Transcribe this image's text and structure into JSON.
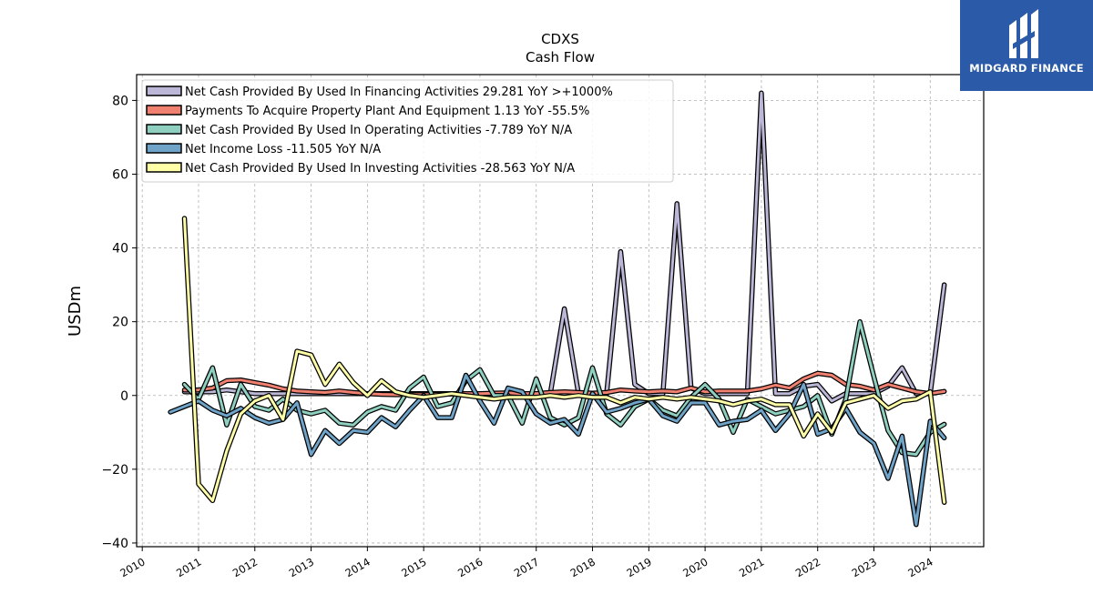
{
  "logo": {
    "text": "MIDGARD FINANCE"
  },
  "chart_data": {
    "type": "line",
    "title": "CDXS",
    "subtitle": "Cash Flow",
    "ylabel": "USDm",
    "xlabel": "",
    "ylim": [
      -41,
      87
    ],
    "xlim": [
      2009.9,
      2024.95
    ],
    "yticks": [
      -40,
      -20,
      0,
      20,
      40,
      60,
      80
    ],
    "xticks": [
      2010,
      2011,
      2012,
      2013,
      2014,
      2015,
      2016,
      2017,
      2018,
      2019,
      2020,
      2021,
      2022,
      2023,
      2024
    ],
    "grid": true,
    "legend_position": "top-left",
    "series": [
      {
        "name": "Net Cash Provided By Used In Financing Activities  29.281 YoY >+1000%",
        "color": "#bcb7d6",
        "x": [
          2010.75,
          2011.0,
          2011.25,
          2011.5,
          2011.75,
          2012.0,
          2012.25,
          2012.5,
          2012.75,
          2013.0,
          2013.25,
          2013.5,
          2013.75,
          2014.0,
          2014.25,
          2014.5,
          2014.75,
          2015.0,
          2015.25,
          2015.5,
          2015.75,
          2016.0,
          2016.25,
          2016.5,
          2016.75,
          2017.0,
          2017.25,
          2017.5,
          2017.75,
          2018.0,
          2018.25,
          2018.5,
          2018.75,
          2019.0,
          2019.25,
          2019.5,
          2019.75,
          2020.0,
          2020.25,
          2020.5,
          2020.75,
          2021.0,
          2021.25,
          2021.5,
          2021.75,
          2022.0,
          2022.25,
          2022.5,
          2022.75,
          2023.0,
          2023.25,
          2023.5,
          2023.75,
          2024.0,
          2024.25
        ],
        "y": [
          1.0,
          1.0,
          1.0,
          1.5,
          1.0,
          0.5,
          0.5,
          0.5,
          0.5,
          0.5,
          0.5,
          0.5,
          0.5,
          0.5,
          0.5,
          0.5,
          0.5,
          0.5,
          0.5,
          0.5,
          0.5,
          0.5,
          0.5,
          0.5,
          0.5,
          0.5,
          0.5,
          23.5,
          0.5,
          0.5,
          0.5,
          39.0,
          3.0,
          0.5,
          0.5,
          52.0,
          2.0,
          0.5,
          0.5,
          0.5,
          0.5,
          82.0,
          0.5,
          0.5,
          2.5,
          3.0,
          -1.5,
          0.5,
          0.5,
          0.5,
          2.5,
          7.5,
          0.5,
          0.5,
          30.0
        ]
      },
      {
        "name": "Payments To Acquire Property Plant And Equipment  1.13 YoY -55.5%",
        "color": "#f08070",
        "x": [
          2010.75,
          2011.0,
          2011.25,
          2011.5,
          2011.75,
          2012.0,
          2012.25,
          2012.5,
          2012.75,
          2013.0,
          2013.25,
          2013.5,
          2013.75,
          2014.0,
          2014.25,
          2014.5,
          2014.75,
          2015.0,
          2015.25,
          2015.5,
          2015.75,
          2016.0,
          2016.25,
          2016.5,
          2016.75,
          2017.0,
          2017.25,
          2017.5,
          2017.75,
          2018.0,
          2018.25,
          2018.5,
          2018.75,
          2019.0,
          2019.25,
          2019.5,
          2019.75,
          2020.0,
          2020.25,
          2020.5,
          2020.75,
          2021.0,
          2021.25,
          2021.5,
          2021.75,
          2022.0,
          2022.25,
          2022.5,
          2022.75,
          2023.0,
          2023.25,
          2023.5,
          2023.75,
          2024.0,
          2024.25
        ],
        "y": [
          1.5,
          1.5,
          2.0,
          4.0,
          4.2,
          3.5,
          2.8,
          1.8,
          1.2,
          1.0,
          0.8,
          1.2,
          0.8,
          0.5,
          0.3,
          0.2,
          0.2,
          0.2,
          0.3,
          0.4,
          0.5,
          0.5,
          0.6,
          0.7,
          0.5,
          0.5,
          0.8,
          1.0,
          0.8,
          0.6,
          0.8,
          1.5,
          1.2,
          1.0,
          1.2,
          1.0,
          2.0,
          1.0,
          1.2,
          1.2,
          1.2,
          1.8,
          2.8,
          2.0,
          4.5,
          6.0,
          5.5,
          3.0,
          2.5,
          1.5,
          3.0,
          2.0,
          1.0,
          0.5,
          1.1
        ]
      },
      {
        "name": "Net Cash Provided By Used In Operating Activities  -7.789 YoY N/A",
        "color": "#8ecfc0",
        "x": [
          2010.75,
          2011.0,
          2011.25,
          2011.5,
          2011.75,
          2012.0,
          2012.25,
          2012.5,
          2012.75,
          2013.0,
          2013.25,
          2013.5,
          2013.75,
          2014.0,
          2014.25,
          2014.5,
          2014.75,
          2015.0,
          2015.25,
          2015.5,
          2015.75,
          2016.0,
          2016.25,
          2016.5,
          2016.75,
          2017.0,
          2017.25,
          2017.5,
          2017.75,
          2018.0,
          2018.25,
          2018.5,
          2018.75,
          2019.0,
          2019.25,
          2019.5,
          2019.75,
          2020.0,
          2020.25,
          2020.5,
          2020.75,
          2021.0,
          2021.25,
          2021.5,
          2021.75,
          2022.0,
          2022.25,
          2022.5,
          2022.75,
          2023.0,
          2023.25,
          2023.5,
          2023.75,
          2024.0,
          2024.25
        ],
        "y": [
          3.0,
          -1.0,
          7.5,
          -8.0,
          3.0,
          -3.0,
          -4.0,
          -1.0,
          -4.0,
          -5.0,
          -4.0,
          -7.5,
          -8.0,
          -4.5,
          -3.0,
          -4.0,
          2.0,
          5.0,
          -3.0,
          -2.0,
          4.0,
          7.0,
          0.0,
          0.0,
          -7.5,
          4.5,
          -6.0,
          -8.0,
          -6.0,
          7.5,
          -5.0,
          -8.0,
          -3.0,
          -1.0,
          -4.0,
          -5.5,
          -0.5,
          3.0,
          -1.0,
          -10.0,
          -1.0,
          -3.0,
          -5.0,
          -4.0,
          -3.0,
          0.0,
          -10.5,
          -1.0,
          20.0,
          5.0,
          -9.5,
          -15.5,
          -16.0,
          -10.0,
          -7.8
        ]
      },
      {
        "name": "Net Income Loss  -11.505 YoY N/A",
        "color": "#6fa3c8",
        "x": [
          2010.5,
          2010.75,
          2011.0,
          2011.25,
          2011.5,
          2011.75,
          2012.0,
          2012.25,
          2012.5,
          2012.75,
          2013.0,
          2013.25,
          2013.5,
          2013.75,
          2014.0,
          2014.25,
          2014.5,
          2014.75,
          2015.0,
          2015.25,
          2015.5,
          2015.75,
          2016.0,
          2016.25,
          2016.5,
          2016.75,
          2017.0,
          2017.25,
          2017.5,
          2017.75,
          2018.0,
          2018.25,
          2018.5,
          2018.75,
          2019.0,
          2019.25,
          2019.5,
          2019.75,
          2020.0,
          2020.25,
          2020.5,
          2020.75,
          2021.0,
          2021.25,
          2021.5,
          2021.75,
          2022.0,
          2022.25,
          2022.5,
          2022.75,
          2023.0,
          2023.25,
          2023.5,
          2023.75,
          2024.0,
          2024.25
        ],
        "y": [
          -4.5,
          -3.0,
          -1.5,
          -4.0,
          -5.5,
          -3.5,
          -6.0,
          -7.5,
          -6.5,
          -2.0,
          -16.0,
          -9.5,
          -13.0,
          -9.5,
          -10.0,
          -6.0,
          -8.5,
          -4.0,
          0.0,
          -6.0,
          -6.0,
          5.5,
          -1.5,
          -7.5,
          2.0,
          1.0,
          -5.0,
          -7.5,
          -6.5,
          -10.5,
          0.5,
          -4.5,
          -3.5,
          -2.0,
          -1.0,
          -5.5,
          -7.0,
          -2.0,
          -2.0,
          -8.0,
          -7.0,
          -6.5,
          -4.0,
          -9.5,
          -5.0,
          3.0,
          -10.5,
          -9.0,
          -3.5,
          -10.0,
          -13.0,
          -22.5,
          -11.0,
          -35.0,
          -7.0,
          -11.5
        ]
      },
      {
        "name": "Net Cash Provided By Used In Investing Activities  -28.563 YoY N/A",
        "color": "#ffffa8",
        "x": [
          2010.75,
          2011.0,
          2011.25,
          2011.5,
          2011.75,
          2012.0,
          2012.25,
          2012.5,
          2012.75,
          2013.0,
          2013.25,
          2013.5,
          2013.75,
          2014.0,
          2014.25,
          2014.5,
          2014.75,
          2015.0,
          2015.25,
          2015.5,
          2015.75,
          2016.0,
          2016.25,
          2016.5,
          2016.75,
          2017.0,
          2017.25,
          2017.5,
          2017.75,
          2018.0,
          2018.25,
          2018.5,
          2018.75,
          2019.0,
          2019.25,
          2019.5,
          2019.75,
          2020.0,
          2020.25,
          2020.5,
          2020.75,
          2021.0,
          2021.25,
          2021.5,
          2021.75,
          2022.0,
          2022.25,
          2022.5,
          2022.75,
          2023.0,
          2023.25,
          2023.5,
          2023.75,
          2024.0,
          2024.25
        ],
        "y": [
          48.0,
          -24.0,
          -28.5,
          -15.0,
          -5.0,
          -1.5,
          0.0,
          -6.5,
          12.0,
          11.0,
          3.0,
          8.5,
          3.5,
          0.0,
          4.0,
          1.0,
          0.0,
          -0.5,
          0.0,
          0.5,
          0.0,
          -0.5,
          -1.0,
          -0.5,
          -0.5,
          -0.5,
          0.0,
          -0.5,
          0.0,
          -0.5,
          -0.5,
          -2.0,
          -0.5,
          -1.0,
          -0.5,
          -1.0,
          -0.5,
          -1.0,
          -1.5,
          -2.5,
          -1.5,
          -1.0,
          -2.5,
          -2.5,
          -11.0,
          -5.0,
          -10.0,
          -2.0,
          -1.0,
          0.0,
          -3.5,
          -1.5,
          -1.0,
          1.0,
          -29.0
        ]
      }
    ]
  }
}
